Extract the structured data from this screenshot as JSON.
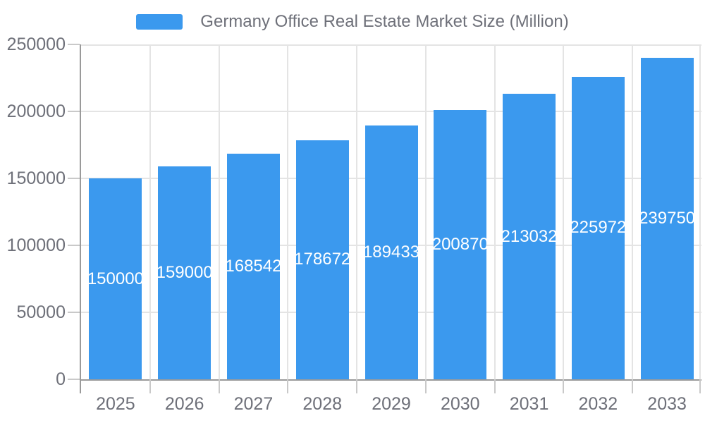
{
  "legend": {
    "label": "Germany Office Real Estate Market Size (Million)"
  },
  "colors": {
    "bar": "#3B99EE",
    "axis": "#9A9A9A",
    "grid": "#E4E4E4",
    "tick": "#C9C9C9",
    "axis_label": "#6E7079",
    "value_label": "#FFFFFF",
    "background": "#FFFFFF"
  },
  "chart_data": {
    "type": "bar",
    "title": "Germany Office Real Estate Market Size (Million)",
    "categories": [
      "2025",
      "2026",
      "2027",
      "2028",
      "2029",
      "2030",
      "2031",
      "2032",
      "2033"
    ],
    "values": [
      150000,
      159000,
      168542,
      178672,
      189433,
      200870,
      213032,
      225972,
      239750
    ],
    "xlabel": "",
    "ylabel": "",
    "ylim": [
      0,
      250000
    ],
    "ytick_interval": 50000,
    "ytick_labels": [
      "0",
      "50000",
      "100000",
      "150000",
      "200000",
      "250000"
    ],
    "grid": true,
    "legend_position": "top",
    "value_label_position": "inside-middle"
  }
}
